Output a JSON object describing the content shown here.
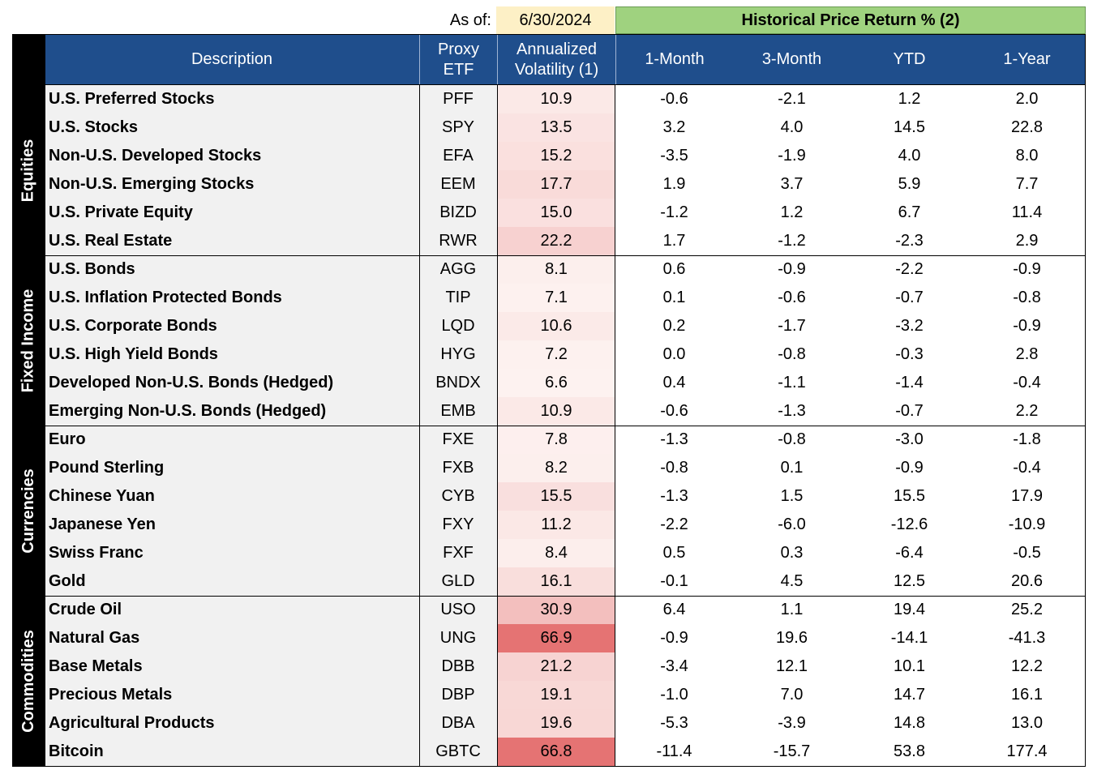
{
  "as_of_label": "As of:",
  "as_of_date": "6/30/2024",
  "hist_title": "Historical Price Return % (2)",
  "headers": {
    "description": "Description",
    "proxy_line1": "Proxy",
    "proxy_line2": "ETF",
    "vol_line1": "Annualized",
    "vol_line2": "Volatility (1)",
    "m1": "1-Month",
    "m3": "3-Month",
    "ytd": "YTD",
    "y1": "1-Year"
  },
  "colors": {
    "header_bg": "#1f4e8c",
    "hist_title_bg": "#9fd27f",
    "asof_bg": "#fdf0c6",
    "vol_low": "#fdecea",
    "vol_high": "#e57373"
  },
  "groups": [
    {
      "label": "Equities",
      "rows": [
        {
          "desc": "U.S. Preferred Stocks",
          "proxy": "PFF",
          "vol": "10.9",
          "m1": "-0.6",
          "m3": "-2.1",
          "ytd": "1.2",
          "y1": "2.0"
        },
        {
          "desc": "U.S. Stocks",
          "proxy": "SPY",
          "vol": "13.5",
          "m1": "3.2",
          "m3": "4.0",
          "ytd": "14.5",
          "y1": "22.8"
        },
        {
          "desc": "Non-U.S. Developed Stocks",
          "proxy": "EFA",
          "vol": "15.2",
          "m1": "-3.5",
          "m3": "-1.9",
          "ytd": "4.0",
          "y1": "8.0"
        },
        {
          "desc": "Non-U.S. Emerging Stocks",
          "proxy": "EEM",
          "vol": "17.7",
          "m1": "1.9",
          "m3": "3.7",
          "ytd": "5.9",
          "y1": "7.7"
        },
        {
          "desc": "U.S. Private Equity",
          "proxy": "BIZD",
          "vol": "15.0",
          "m1": "-1.2",
          "m3": "1.2",
          "ytd": "6.7",
          "y1": "11.4"
        },
        {
          "desc": "U.S. Real Estate",
          "proxy": "RWR",
          "vol": "22.2",
          "m1": "1.7",
          "m3": "-1.2",
          "ytd": "-2.3",
          "y1": "2.9"
        }
      ]
    },
    {
      "label": "Fixed Income",
      "rows": [
        {
          "desc": "U.S. Bonds",
          "proxy": "AGG",
          "vol": "8.1",
          "m1": "0.6",
          "m3": "-0.9",
          "ytd": "-2.2",
          "y1": "-0.9"
        },
        {
          "desc": "U.S. Inflation Protected Bonds",
          "proxy": "TIP",
          "vol": "7.1",
          "m1": "0.1",
          "m3": "-0.6",
          "ytd": "-0.7",
          "y1": "-0.8"
        },
        {
          "desc": "U.S. Corporate Bonds",
          "proxy": "LQD",
          "vol": "10.6",
          "m1": "0.2",
          "m3": "-1.7",
          "ytd": "-3.2",
          "y1": "-0.9"
        },
        {
          "desc": "U.S. High Yield Bonds",
          "proxy": "HYG",
          "vol": "7.2",
          "m1": "0.0",
          "m3": "-0.8",
          "ytd": "-0.3",
          "y1": "2.8"
        },
        {
          "desc": "Developed Non-U.S. Bonds (Hedged)",
          "proxy": "BNDX",
          "vol": "6.6",
          "m1": "0.4",
          "m3": "-1.1",
          "ytd": "-1.4",
          "y1": "-0.4"
        },
        {
          "desc": "Emerging Non-U.S. Bonds (Hedged)",
          "proxy": "EMB",
          "vol": "10.9",
          "m1": "-0.6",
          "m3": "-1.3",
          "ytd": "-0.7",
          "y1": "2.2"
        }
      ]
    },
    {
      "label": "Currencies",
      "rows": [
        {
          "desc": "Euro",
          "proxy": "FXE",
          "vol": "7.8",
          "m1": "-1.3",
          "m3": "-0.8",
          "ytd": "-3.0",
          "y1": "-1.8"
        },
        {
          "desc": "Pound Sterling",
          "proxy": "FXB",
          "vol": "8.2",
          "m1": "-0.8",
          "m3": "0.1",
          "ytd": "-0.9",
          "y1": "-0.4"
        },
        {
          "desc": "Chinese Yuan",
          "proxy": "CYB",
          "vol": "15.5",
          "m1": "-1.3",
          "m3": "1.5",
          "ytd": "15.5",
          "y1": "17.9"
        },
        {
          "desc": "Japanese Yen",
          "proxy": "FXY",
          "vol": "11.2",
          "m1": "-2.2",
          "m3": "-6.0",
          "ytd": "-12.6",
          "y1": "-10.9"
        },
        {
          "desc": "Swiss Franc",
          "proxy": "FXF",
          "vol": "8.4",
          "m1": "0.5",
          "m3": "0.3",
          "ytd": "-6.4",
          "y1": "-0.5"
        },
        {
          "desc": "Gold",
          "proxy": "GLD",
          "vol": "16.1",
          "m1": "-0.1",
          "m3": "4.5",
          "ytd": "12.5",
          "y1": "20.6"
        }
      ]
    },
    {
      "label": "Commodities",
      "rows": [
        {
          "desc": "Crude Oil",
          "proxy": "USO",
          "vol": "30.9",
          "m1": "6.4",
          "m3": "1.1",
          "ytd": "19.4",
          "y1": "25.2"
        },
        {
          "desc": "Natural Gas",
          "proxy": "UNG",
          "vol": "66.9",
          "m1": "-0.9",
          "m3": "19.6",
          "ytd": "-14.1",
          "y1": "-41.3"
        },
        {
          "desc": "Base Metals",
          "proxy": "DBB",
          "vol": "21.2",
          "m1": "-3.4",
          "m3": "12.1",
          "ytd": "10.1",
          "y1": "12.2"
        },
        {
          "desc": "Precious Metals",
          "proxy": "DBP",
          "vol": "19.1",
          "m1": "-1.0",
          "m3": "7.0",
          "ytd": "14.7",
          "y1": "16.1"
        },
        {
          "desc": "Agricultural Products",
          "proxy": "DBA",
          "vol": "19.6",
          "m1": "-5.3",
          "m3": "-3.9",
          "ytd": "14.8",
          "y1": "13.0"
        },
        {
          "desc": "Bitcoin",
          "proxy": "GBTC",
          "vol": "66.8",
          "m1": "-11.4",
          "m3": "-15.7",
          "ytd": "53.8",
          "y1": "177.4"
        }
      ]
    }
  ]
}
